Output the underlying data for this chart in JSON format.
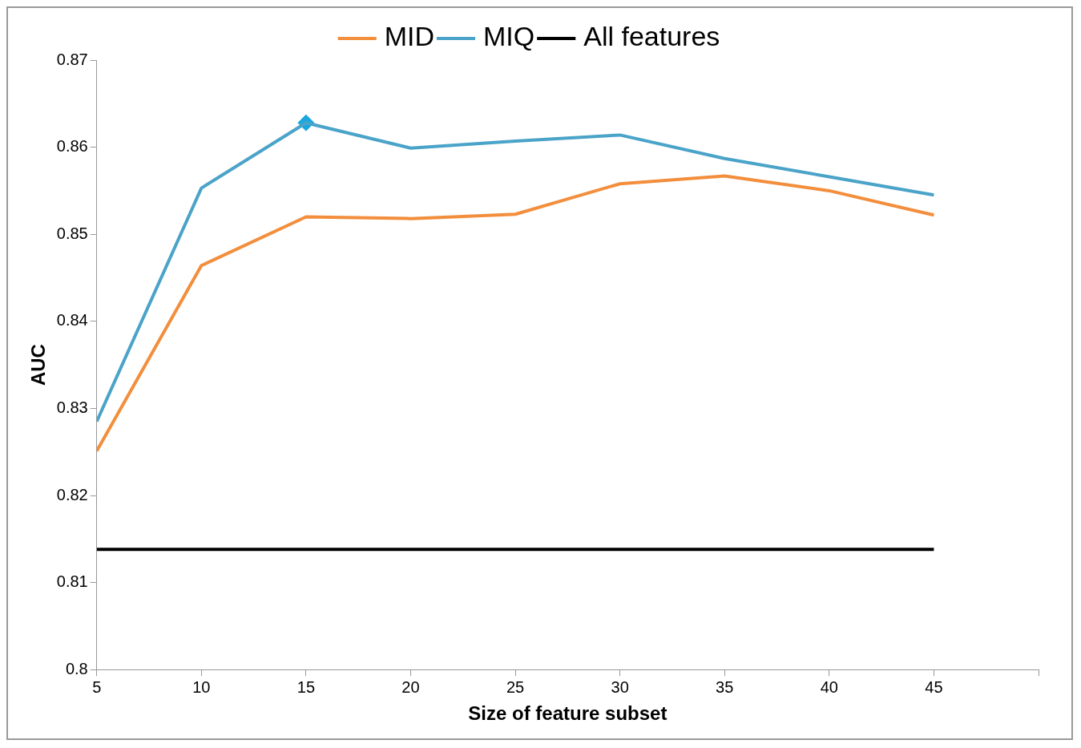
{
  "chart_data": {
    "type": "line",
    "xlabel": "Size of feature subset",
    "ylabel": "AUC",
    "xlim": [
      5,
      50
    ],
    "xticks": [
      5,
      10,
      15,
      20,
      25,
      30,
      35,
      40,
      45,
      {
        "value": 50,
        "label": null
      }
    ],
    "ylim": [
      0.8,
      0.87
    ],
    "yticks": [
      0.8,
      0.81,
      0.82,
      0.83,
      0.84,
      0.85,
      0.86,
      0.87
    ],
    "grid": false,
    "legend": "top",
    "marker": "none",
    "line_style": "solid",
    "x": [
      5,
      10,
      15,
      20,
      25,
      30,
      35,
      40,
      45
    ],
    "series": [
      {
        "name": "MID",
        "color": "#f28e3c",
        "values": [
          0.8251,
          0.8464,
          0.852,
          0.8518,
          0.8523,
          0.8558,
          0.8567,
          0.855,
          0.8522
        ]
      },
      {
        "name": "MIQ",
        "color": "#4aa3c8",
        "values": [
          0.8285,
          0.8553,
          0.8628,
          0.8599,
          0.8607,
          0.8614,
          0.8587,
          0.8566,
          0.8545
        ]
      },
      {
        "name": "All features",
        "color": "#000000",
        "values": [
          0.8138,
          0.8138,
          0.8138,
          0.8138,
          0.8138,
          0.8138,
          0.8138,
          0.8138,
          0.8138
        ]
      },
      {
        "type": "scatter",
        "marker": "diamond",
        "color": "#1aa7e0",
        "x": [
          15
        ],
        "values": [
          0.8628
        ]
      }
    ]
  }
}
